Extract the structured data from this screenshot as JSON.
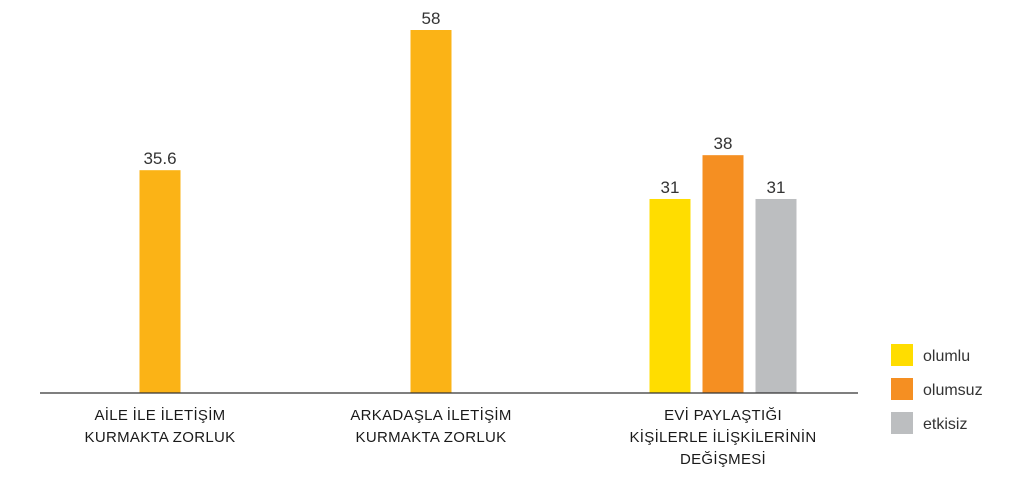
{
  "chart_data": {
    "type": "bar",
    "title": "",
    "xlabel": "",
    "ylabel": "",
    "ylim": [
      0,
      58
    ],
    "grid": false,
    "legend_position": "bottom-right",
    "categories": [
      [
        "AİLE İLE İLETİŞİM",
        "KURMAKTA ZORLUK"
      ],
      [
        "ARKADAŞLA İLETİŞİM",
        "KURMAKTA ZORLUK"
      ],
      [
        "EVİ PAYLAŞTIĞI",
        "KİŞİLERLE İLİŞKİLERİNİN",
        "DEĞİŞMESİ"
      ]
    ],
    "bars": [
      {
        "category": 0,
        "value": 35.6,
        "label": "35.6",
        "color": "#FBB316"
      },
      {
        "category": 1,
        "value": 58,
        "label": "58",
        "color": "#FBB316"
      },
      {
        "category": 2,
        "value": 31,
        "label": "31",
        "color": "#FFDD00",
        "series": "olumlu"
      },
      {
        "category": 2,
        "value": 38,
        "label": "38",
        "color": "#F58F22",
        "series": "olumsuz"
      },
      {
        "category": 2,
        "value": 31,
        "label": "31",
        "color": "#BCBEC0",
        "series": "etkisiz"
      }
    ],
    "legend": [
      {
        "name": "olumlu",
        "color": "#FFDD00"
      },
      {
        "name": "olumsuz",
        "color": "#F58F22"
      },
      {
        "name": "etkisiz",
        "color": "#BCBEC0"
      }
    ]
  }
}
